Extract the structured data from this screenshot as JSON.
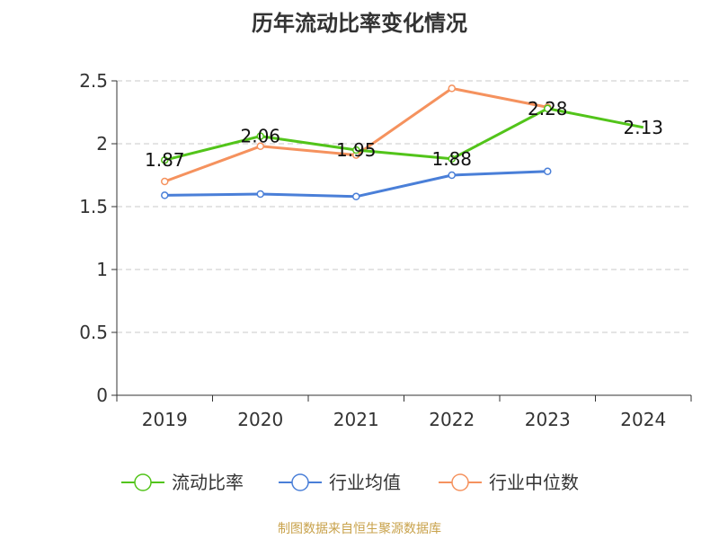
{
  "chart_data": {
    "type": "line",
    "title": "历年流动比率变化情况",
    "categories": [
      "2019",
      "2020",
      "2021",
      "2022",
      "2023",
      "2024"
    ],
    "ylim": [
      0,
      2.5
    ],
    "yticks": [
      "0",
      "0.5",
      "1",
      "1.5",
      "2",
      "2.5"
    ],
    "grid": true,
    "legend_position": "bottom",
    "series": [
      {
        "name": "流动比率",
        "color": "#52c41a",
        "values": [
          1.87,
          2.06,
          1.95,
          1.88,
          2.28,
          2.13
        ],
        "labels": [
          "1.87",
          "2.06",
          "1.95",
          "1.88",
          "2.28",
          "2.13"
        ],
        "marker_shown": [
          true,
          true,
          true,
          true,
          true,
          false
        ]
      },
      {
        "name": "行业均值",
        "color": "#4a7fd8",
        "values": [
          1.59,
          1.6,
          1.58,
          1.75,
          1.78,
          null
        ]
      },
      {
        "name": "行业中位数",
        "color": "#f5925e",
        "values": [
          1.7,
          1.98,
          1.91,
          2.44,
          2.29,
          null
        ]
      }
    ]
  },
  "footer": {
    "source": "制图数据来自恒生聚源数据库"
  }
}
